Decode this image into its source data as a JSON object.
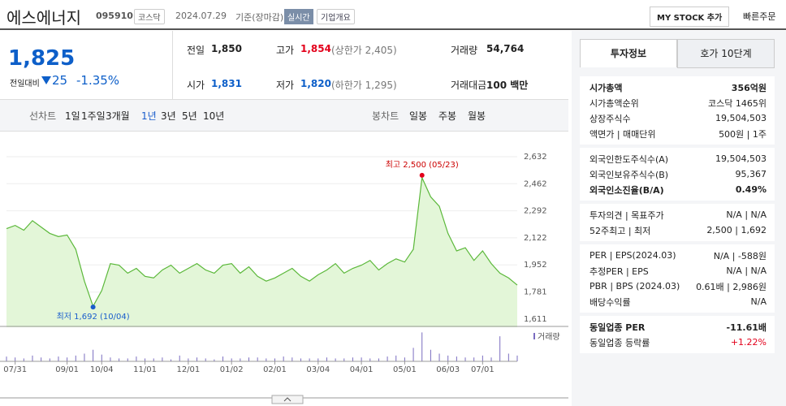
{
  "header": {
    "name": "에스에너지",
    "code": "095910",
    "market": "코스닥",
    "date": "2024.07.29",
    "basis": "기준(장마감)",
    "badge": "실시간",
    "overview": "기업개요",
    "mystock": "MY STOCK 추가",
    "order": "빠른주문"
  },
  "price": {
    "current": "1,825",
    "change_label": "전일대비",
    "change": "25",
    "rate": "-1.35%"
  },
  "summary": [
    {
      "label": "전일",
      "value": "1,850"
    },
    {
      "label": "고가",
      "value": "1,854",
      "note": "(상한가 2,405)"
    },
    {
      "label": "거래량",
      "value": "54,764"
    },
    {
      "label": "시가",
      "value": "1,831"
    },
    {
      "label": "저가",
      "value": "1,820",
      "note": "(하한가 1,295)"
    },
    {
      "label": "거래대금",
      "value": "100 백만"
    }
  ],
  "tabs": {
    "line_label": "선차트",
    "periods": [
      "1일",
      "1주일",
      "3개월",
      "1년",
      "3년",
      "5년",
      "10년"
    ],
    "candle_label": "봉차트",
    "candles": [
      "일봉",
      "주봉",
      "월봉"
    ]
  },
  "chart": {
    "type": "line",
    "color": "#5bb83a",
    "values": [
      2180,
      2200,
      2170,
      2230,
      2190,
      2150,
      2130,
      2140,
      2050,
      1850,
      1692,
      1790,
      1960,
      1950,
      1900,
      1930,
      1880,
      1870,
      1920,
      1950,
      1900,
      1930,
      1960,
      1920,
      1900,
      1950,
      1960,
      1900,
      1940,
      1880,
      1850,
      1870,
      1900,
      1930,
      1880,
      1850,
      1890,
      1920,
      1960,
      1900,
      1930,
      1950,
      1980,
      1920,
      1960,
      1990,
      1970,
      2050,
      2500,
      2380,
      2320,
      2150,
      2040,
      2060,
      1980,
      2040,
      1960,
      1900,
      1870,
      1825
    ],
    "volume": [
      5,
      4,
      3,
      6,
      4,
      3,
      5,
      4,
      6,
      8,
      12,
      7,
      4,
      3,
      3,
      5,
      3,
      3,
      4,
      2,
      6,
      3,
      4,
      3,
      2,
      5,
      3,
      3,
      4,
      4,
      3,
      3,
      5,
      4,
      3,
      3,
      3,
      4,
      3,
      3,
      4,
      4,
      3,
      3,
      5,
      6,
      4,
      14,
      30,
      12,
      8,
      6,
      5,
      4,
      4,
      6,
      4,
      26,
      8,
      6
    ],
    "vlim": [
      0,
      32
    ],
    "ylim": [
      1611,
      2632
    ],
    "yticks": [
      {
        "value": 1611,
        "label": "1,611"
      },
      {
        "value": 1781,
        "label": "1,781"
      },
      {
        "value": 1952,
        "label": "1,952"
      },
      {
        "value": 2122,
        "label": "2,122"
      },
      {
        "value": 2292,
        "label": "2,292"
      },
      {
        "value": 2462,
        "label": "2,462"
      },
      {
        "value": 2632,
        "label": "2,632"
      }
    ],
    "xticks": [
      {
        "value": 1,
        "label": "07/31"
      },
      {
        "value": 7,
        "label": "09/01"
      },
      {
        "value": 11,
        "label": "10/04"
      },
      {
        "value": 16,
        "label": "11/01"
      },
      {
        "value": 21,
        "label": "12/01"
      },
      {
        "value": 26,
        "label": "01/02"
      },
      {
        "value": 31,
        "label": "02/01"
      },
      {
        "value": 36,
        "label": "03/04"
      },
      {
        "value": 41,
        "label": "04/01"
      },
      {
        "value": 46,
        "label": "05/01"
      },
      {
        "value": 51,
        "label": "06/03"
      },
      {
        "value": 55,
        "label": "07/01"
      }
    ],
    "high_index": 48,
    "high_label": "최고 2,500 (05/23)",
    "low_index": 10,
    "low_label": "최저 1,692 (10/04)",
    "volume_label": "거래량"
  },
  "side": {
    "tabs": [
      "투자정보",
      "호가 10단계"
    ],
    "sections": [
      [
        {
          "label": "시가총액",
          "value": "356억원",
          "bold": true
        },
        {
          "label": "시가총액순위",
          "value": "코스닥 1465위"
        },
        {
          "label": "상장주식수",
          "value": "19,504,503"
        },
        {
          "label": "액면가 | 매매단위",
          "value": "500원 | 1주"
        }
      ],
      [
        {
          "label": "외국인한도주식수(A)",
          "value": "19,504,503"
        },
        {
          "label": "외국인보유주식수(B)",
          "value": "95,367"
        },
        {
          "label": "외국인소진율(B/A)",
          "value": "0.49%",
          "bold": true
        }
      ],
      [
        {
          "label": "투자의견 | 목표주가",
          "value": "N/A | N/A"
        },
        {
          "label": "52주최고 | 최저",
          "value": "2,500 | 1,692"
        }
      ],
      [
        {
          "label": "PER | EPS(2024.03)",
          "value": "N/A | -588원"
        },
        {
          "label": "추정PER | EPS",
          "value": "N/A | N/A"
        },
        {
          "label": "PBR | BPS (2024.03)",
          "value": "0.61배 | 2,986원"
        },
        {
          "label": "배당수익률",
          "value": "N/A"
        }
      ],
      [
        {
          "label": "동일업종 PER",
          "value": "-11.61배",
          "bold": true
        },
        {
          "label": "동일업종 등락률",
          "value": "+1.22%",
          "red": true
        }
      ]
    ]
  }
}
